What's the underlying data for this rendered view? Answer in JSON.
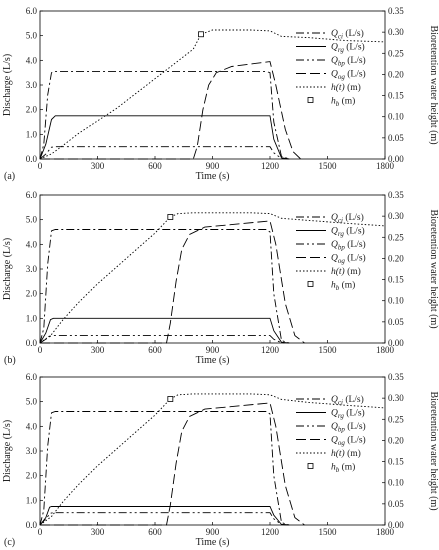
{
  "chart_data": [
    {
      "type": "line",
      "panel_tag": "(a)",
      "xlabel": "Time (s)",
      "ylabel": "Discharge (L/s)",
      "y2label": "Bioretention water height (m)",
      "xlim": [
        0,
        1800
      ],
      "ylim": [
        0,
        6
      ],
      "y2lim": [
        0,
        0.35
      ],
      "x_ticks": [
        "0",
        "300",
        "600",
        "900",
        "1200",
        "1500",
        "1800"
      ],
      "y_ticks": [
        "0.0",
        "1.0",
        "2.0",
        "3.0",
        "4.0",
        "5.0",
        "6.0"
      ],
      "y2_ticks": [
        "0.00",
        "0.05",
        "0.10",
        "0.15",
        "0.20",
        "0.25",
        "0.30",
        "0.35"
      ],
      "series": [
        {
          "name": "Q_ci (L/s)",
          "label_main": "Q",
          "label_sub": "ci",
          "label_unit": " (L/s)",
          "dash": "8 3 2 3",
          "axis": "left",
          "x": [
            0,
            20,
            40,
            60,
            80,
            1180,
            1200,
            1220,
            1260,
            1300
          ],
          "y": [
            0,
            0.6,
            2.6,
            3.5,
            3.55,
            3.55,
            3.5,
            1.5,
            0.1,
            0
          ]
        },
        {
          "name": "Q_rg (L/s)",
          "label_main": "Q",
          "label_sub": "rg",
          "label_unit": " (L/s)",
          "dash": "none",
          "axis": "left",
          "x": [
            0,
            30,
            60,
            80,
            1200,
            1220,
            1260,
            1300
          ],
          "y": [
            0,
            0.6,
            1.6,
            1.75,
            1.75,
            0.8,
            0.05,
            0
          ]
        },
        {
          "name": "Q_bp (L/s)",
          "label_main": "Q",
          "label_sub": "bp",
          "label_unit": " (L/s)",
          "dash": "8 3 2 3 2 3",
          "axis": "left",
          "x": [
            0,
            30,
            60,
            80,
            1200,
            1220,
            1260,
            1300
          ],
          "y": [
            0,
            0.2,
            0.48,
            0.5,
            0.5,
            0.25,
            0.02,
            0
          ]
        },
        {
          "name": "Q_og (L/s)",
          "label_main": "Q",
          "label_sub": "og",
          "label_unit": " (L/s)",
          "dash": "10 4",
          "axis": "left",
          "x": [
            0,
            800,
            820,
            850,
            880,
            920,
            1000,
            1100,
            1200,
            1230,
            1280,
            1320,
            1360
          ],
          "y": [
            0,
            0,
            0.5,
            2.0,
            3.0,
            3.5,
            3.75,
            3.85,
            3.95,
            3.0,
            1.2,
            0.3,
            0
          ]
        },
        {
          "name": "h(t) (m)",
          "label_main": "h(t)",
          "label_sub": "",
          "label_unit": " (m)",
          "dash": "1.5 2",
          "axis": "right",
          "x": [
            0,
            60,
            120,
            200,
            300,
            400,
            500,
            600,
            700,
            800,
            840,
            900,
            1000,
            1100,
            1200,
            1260,
            1400,
            1600,
            1800
          ],
          "y": [
            0,
            0.012,
            0.032,
            0.06,
            0.09,
            0.12,
            0.155,
            0.19,
            0.225,
            0.26,
            0.295,
            0.305,
            0.305,
            0.305,
            0.303,
            0.29,
            0.287,
            0.28,
            0.277
          ]
        },
        {
          "name": "h_b (m)",
          "label_main": "h",
          "label_sub": "b",
          "label_unit": " (m)",
          "marker": "square",
          "axis": "right",
          "x": [
            840
          ],
          "y": [
            0.295
          ]
        }
      ]
    },
    {
      "type": "line",
      "panel_tag": "(b)",
      "xlabel": "Time (s)",
      "ylabel": "Discharge (L/s)",
      "y2label": "Bioretention water height (m)",
      "xlim": [
        0,
        1800
      ],
      "ylim": [
        0,
        6
      ],
      "y2lim": [
        0,
        0.35
      ],
      "x_ticks": [
        "0",
        "300",
        "600",
        "900",
        "1200",
        "1500",
        "1800"
      ],
      "y_ticks": [
        "0.0",
        "1.0",
        "2.0",
        "3.0",
        "4.0",
        "5.0",
        "6.0"
      ],
      "y2_ticks": [
        "0.00",
        "0.05",
        "0.10",
        "0.15",
        "0.20",
        "0.25",
        "0.30",
        "0.35"
      ],
      "series": [
        {
          "name": "Q_ci (L/s)",
          "label_main": "Q",
          "label_sub": "ci",
          "label_unit": " (L/s)",
          "dash": "8 3 2 3",
          "axis": "left",
          "x": [
            0,
            20,
            40,
            60,
            80,
            1180,
            1200,
            1220,
            1260,
            1300
          ],
          "y": [
            0,
            0.6,
            3.2,
            4.55,
            4.6,
            4.6,
            4.5,
            2.0,
            0.1,
            0
          ]
        },
        {
          "name": "Q_rg (L/s)",
          "label_main": "Q",
          "label_sub": "rg",
          "label_unit": " (L/s)",
          "dash": "none",
          "axis": "left",
          "x": [
            0,
            30,
            55,
            70,
            1200,
            1220,
            1260,
            1300
          ],
          "y": [
            0,
            0.4,
            0.95,
            1.0,
            1.0,
            0.5,
            0.03,
            0
          ]
        },
        {
          "name": "Q_bp (L/s)",
          "label_main": "Q",
          "label_sub": "bp",
          "label_unit": " (L/s)",
          "dash": "8 3 2 3 2 3",
          "axis": "left",
          "x": [
            0,
            30,
            55,
            70,
            1200,
            1220,
            1260,
            1300
          ],
          "y": [
            0,
            0.15,
            0.28,
            0.3,
            0.3,
            0.15,
            0.01,
            0
          ]
        },
        {
          "name": "Q_og (L/s)",
          "label_main": "Q",
          "label_sub": "og",
          "label_unit": " (L/s)",
          "dash": "10 4",
          "axis": "left",
          "x": [
            0,
            660,
            680,
            710,
            740,
            780,
            860,
            1000,
            1200,
            1230,
            1280,
            1330,
            1380
          ],
          "y": [
            0,
            0,
            0.8,
            2.5,
            3.8,
            4.4,
            4.7,
            4.8,
            4.95,
            4.0,
            1.6,
            0.3,
            0
          ]
        },
        {
          "name": "h(t) (m)",
          "label_main": "h(t)",
          "label_sub": "",
          "label_unit": " (m)",
          "dash": "1.5 2",
          "axis": "right",
          "x": [
            0,
            60,
            120,
            200,
            300,
            400,
            500,
            600,
            680,
            720,
            800,
            900,
            1000,
            1100,
            1200,
            1260,
            1400,
            1600,
            1800
          ],
          "y": [
            0,
            0.02,
            0.055,
            0.095,
            0.14,
            0.18,
            0.22,
            0.26,
            0.298,
            0.306,
            0.308,
            0.308,
            0.308,
            0.308,
            0.306,
            0.295,
            0.29,
            0.283,
            0.277
          ]
        },
        {
          "name": "h_b (m)",
          "label_main": "h",
          "label_sub": "b",
          "label_unit": " (m)",
          "marker": "square",
          "axis": "right",
          "x": [
            680
          ],
          "y": [
            0.298
          ]
        }
      ]
    },
    {
      "type": "line",
      "panel_tag": "(c)",
      "xlabel": "Time (s)",
      "ylabel": "Discharge (L/s)",
      "y2label": "Bioretention water height (m)",
      "xlim": [
        0,
        1800
      ],
      "ylim": [
        0,
        6
      ],
      "y2lim": [
        0,
        0.35
      ],
      "x_ticks": [
        "0",
        "300",
        "600",
        "900",
        "1200",
        "1500",
        "1800"
      ],
      "y_ticks": [
        "0.0",
        "1.0",
        "2.0",
        "3.0",
        "4.0",
        "5.0",
        "6.0"
      ],
      "y2_ticks": [
        "0.00",
        "0.05",
        "0.10",
        "0.15",
        "0.20",
        "0.25",
        "0.30",
        "0.35"
      ],
      "series": [
        {
          "name": "Q_ci (L/s)",
          "label_main": "Q",
          "label_sub": "ci",
          "label_unit": " (L/s)",
          "dash": "8 3 2 3",
          "axis": "left",
          "x": [
            0,
            20,
            40,
            60,
            80,
            1180,
            1200,
            1220,
            1260,
            1300
          ],
          "y": [
            0,
            0.6,
            3.2,
            4.55,
            4.6,
            4.6,
            4.5,
            2.0,
            0.1,
            0
          ]
        },
        {
          "name": "Q_rg (L/s)",
          "label_main": "Q",
          "label_sub": "rg",
          "label_unit": " (L/s)",
          "dash": "none",
          "axis": "left",
          "x": [
            0,
            30,
            50,
            60,
            1200,
            1220,
            1260,
            1300
          ],
          "y": [
            0,
            0.3,
            0.72,
            0.75,
            0.75,
            0.4,
            0.02,
            0
          ]
        },
        {
          "name": "Q_bp (L/s)",
          "label_main": "Q",
          "label_sub": "bp",
          "label_unit": " (L/s)",
          "dash": "8 3 2 3 2 3",
          "axis": "left",
          "x": [
            0,
            30,
            55,
            70,
            1200,
            1220,
            1260,
            1300
          ],
          "y": [
            0,
            0.25,
            0.48,
            0.5,
            0.5,
            0.25,
            0.02,
            0
          ]
        },
        {
          "name": "Q_og (L/s)",
          "label_main": "Q",
          "label_sub": "og",
          "label_unit": " (L/s)",
          "dash": "10 4",
          "axis": "left",
          "x": [
            0,
            660,
            680,
            710,
            740,
            780,
            860,
            1000,
            1200,
            1230,
            1280,
            1330,
            1380
          ],
          "y": [
            0,
            0,
            0.8,
            2.5,
            3.8,
            4.4,
            4.7,
            4.8,
            4.95,
            4.0,
            1.6,
            0.3,
            0
          ]
        },
        {
          "name": "h(t) (m)",
          "label_main": "h(t)",
          "label_sub": "",
          "label_unit": " (m)",
          "dash": "1.5 2",
          "axis": "right",
          "x": [
            0,
            60,
            120,
            200,
            300,
            400,
            500,
            600,
            680,
            720,
            800,
            900,
            1000,
            1100,
            1200,
            1260,
            1400,
            1600,
            1800
          ],
          "y": [
            0,
            0.02,
            0.055,
            0.095,
            0.14,
            0.18,
            0.22,
            0.26,
            0.298,
            0.308,
            0.31,
            0.31,
            0.31,
            0.31,
            0.308,
            0.297,
            0.29,
            0.283,
            0.277
          ]
        },
        {
          "name": "h_b (m)",
          "label_main": "h",
          "label_sub": "b",
          "label_unit": " (m)",
          "marker": "square",
          "axis": "right",
          "x": [
            680
          ],
          "y": [
            0.298
          ]
        }
      ]
    }
  ]
}
